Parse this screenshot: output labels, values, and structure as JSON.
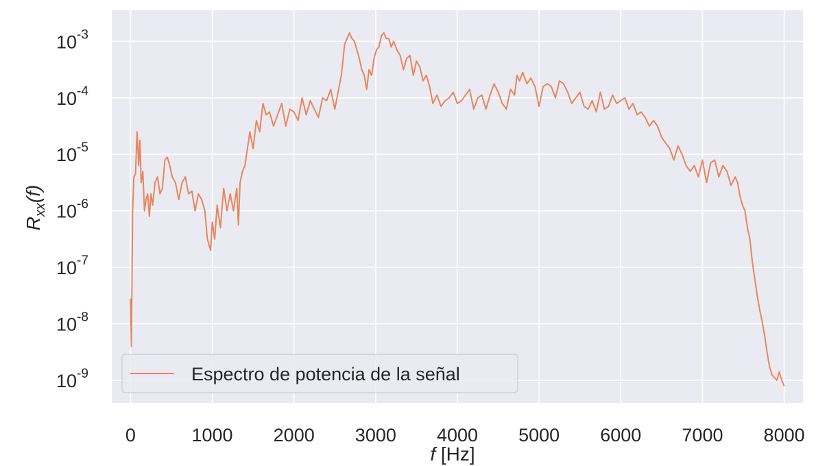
{
  "chart_data": {
    "type": "line",
    "xlabel": "f [Hz]",
    "ylabel": "R_xx(f)",
    "xlim": [
      -230,
      8230
    ],
    "ylim_log10": [
      -9.4,
      -2.45
    ],
    "y_scale": "log",
    "grid": true,
    "legend_position": "lower-left",
    "x_ticks": [
      0,
      1000,
      2000,
      3000,
      4000,
      5000,
      6000,
      7000,
      8000
    ],
    "y_ticks": [
      {
        "base": "10",
        "exp": "-9",
        "log": -9
      },
      {
        "base": "10",
        "exp": "-8",
        "log": -8
      },
      {
        "base": "10",
        "exp": "-7",
        "log": -7
      },
      {
        "base": "10",
        "exp": "-6",
        "log": -6
      },
      {
        "base": "10",
        "exp": "-5",
        "log": -5
      },
      {
        "base": "10",
        "exp": "-4",
        "log": -4
      },
      {
        "base": "10",
        "exp": "-3",
        "log": -3
      }
    ],
    "colors": {
      "background": "#eaeaf2",
      "grid": "#ffffff",
      "line": "#e8865c",
      "text": "#262626"
    },
    "series": [
      {
        "name": "Espectro de potencia de la señal",
        "x": [
          0,
          10,
          25,
          40,
          60,
          80,
          100,
          115,
          130,
          150,
          170,
          190,
          210,
          230,
          250,
          270,
          300,
          330,
          360,
          390,
          420,
          450,
          480,
          510,
          550,
          590,
          630,
          670,
          710,
          750,
          790,
          830,
          870,
          910,
          940,
          960,
          980,
          1000,
          1030,
          1060,
          1100,
          1140,
          1180,
          1220,
          1260,
          1300,
          1320,
          1340,
          1370,
          1400,
          1430,
          1460,
          1500,
          1540,
          1580,
          1620,
          1660,
          1700,
          1750,
          1800,
          1850,
          1900,
          1950,
          2000,
          2050,
          2100,
          2150,
          2200,
          2250,
          2300,
          2350,
          2400,
          2450,
          2500,
          2540,
          2580,
          2620,
          2650,
          2680,
          2710,
          2740,
          2770,
          2800,
          2830,
          2860,
          2890,
          2920,
          2950,
          2980,
          3010,
          3040,
          3070,
          3100,
          3130,
          3160,
          3190,
          3220,
          3260,
          3300,
          3340,
          3380,
          3420,
          3460,
          3500,
          3540,
          3580,
          3620,
          3660,
          3700,
          3750,
          3800,
          3850,
          3900,
          3950,
          4000,
          4050,
          4100,
          4150,
          4200,
          4250,
          4300,
          4350,
          4400,
          4450,
          4500,
          4550,
          4600,
          4650,
          4700,
          4730,
          4760,
          4800,
          4850,
          4900,
          4950,
          5000,
          5050,
          5100,
          5150,
          5200,
          5250,
          5300,
          5350,
          5400,
          5450,
          5500,
          5550,
          5600,
          5650,
          5700,
          5750,
          5800,
          5850,
          5900,
          5950,
          6000,
          6050,
          6100,
          6150,
          6200,
          6250,
          6300,
          6350,
          6400,
          6450,
          6500,
          6550,
          6600,
          6650,
          6700,
          6750,
          6800,
          6850,
          6900,
          6950,
          7000,
          7050,
          7100,
          7150,
          7200,
          7250,
          7300,
          7350,
          7400,
          7430,
          7460,
          7490,
          7520,
          7550,
          7580,
          7610,
          7640,
          7670,
          7700,
          7730,
          7760,
          7790,
          7820,
          7850,
          7880,
          7910,
          7940,
          7970,
          8000
        ],
        "log10_y": [
          -7.55,
          -8.4,
          -6.0,
          -5.4,
          -5.35,
          -4.6,
          -5.2,
          -4.75,
          -5.5,
          -5.3,
          -6.0,
          -5.8,
          -5.7,
          -6.1,
          -5.7,
          -5.9,
          -5.5,
          -5.4,
          -5.7,
          -5.6,
          -5.1,
          -5.05,
          -5.2,
          -5.4,
          -5.5,
          -5.8,
          -5.5,
          -5.4,
          -5.7,
          -5.65,
          -6.0,
          -5.7,
          -5.8,
          -6.0,
          -6.5,
          -6.6,
          -6.7,
          -6.2,
          -6.5,
          -5.9,
          -6.3,
          -5.6,
          -6.0,
          -5.7,
          -6.0,
          -5.6,
          -6.25,
          -5.5,
          -5.3,
          -5.2,
          -4.9,
          -4.6,
          -4.9,
          -4.4,
          -4.6,
          -4.1,
          -4.3,
          -4.25,
          -4.5,
          -4.3,
          -4.1,
          -4.5,
          -4.2,
          -4.25,
          -4.4,
          -4.0,
          -4.3,
          -4.05,
          -4.2,
          -4.35,
          -4.0,
          -4.05,
          -3.85,
          -4.2,
          -3.9,
          -3.6,
          -3.05,
          -2.95,
          -2.85,
          -2.95,
          -3.0,
          -3.15,
          -3.3,
          -3.5,
          -3.6,
          -3.85,
          -3.5,
          -3.6,
          -3.3,
          -3.15,
          -3.1,
          -2.9,
          -2.85,
          -2.95,
          -2.95,
          -3.1,
          -3.0,
          -3.15,
          -3.25,
          -3.5,
          -3.3,
          -3.25,
          -3.6,
          -3.35,
          -3.45,
          -3.7,
          -3.6,
          -3.8,
          -4.1,
          -3.95,
          -4.15,
          -4.05,
          -4.0,
          -3.9,
          -4.1,
          -4.05,
          -3.95,
          -3.85,
          -4.2,
          -4.0,
          -3.95,
          -4.2,
          -3.95,
          -3.75,
          -3.9,
          -4.1,
          -4.2,
          -3.85,
          -3.95,
          -3.6,
          -3.7,
          -3.55,
          -3.75,
          -3.65,
          -3.8,
          -4.15,
          -3.8,
          -3.75,
          -3.8,
          -4.0,
          -3.7,
          -3.75,
          -3.9,
          -4.1,
          -4.0,
          -3.9,
          -4.15,
          -4.2,
          -4.05,
          -4.25,
          -3.9,
          -4.2,
          -4.15,
          -3.95,
          -4.1,
          -4.05,
          -4.0,
          -4.2,
          -4.1,
          -4.3,
          -4.25,
          -4.35,
          -4.5,
          -4.4,
          -4.5,
          -4.7,
          -4.8,
          -4.9,
          -5.1,
          -4.85,
          -5.0,
          -5.2,
          -5.3,
          -5.2,
          -5.4,
          -5.1,
          -5.5,
          -5.15,
          -5.1,
          -5.4,
          -5.2,
          -5.3,
          -5.55,
          -5.4,
          -5.5,
          -5.75,
          -5.9,
          -6.0,
          -6.3,
          -6.5,
          -6.9,
          -7.2,
          -7.5,
          -7.75,
          -7.95,
          -8.2,
          -8.5,
          -8.75,
          -8.9,
          -8.95,
          -9.0,
          -8.85,
          -9.0,
          -9.1
        ]
      }
    ]
  }
}
